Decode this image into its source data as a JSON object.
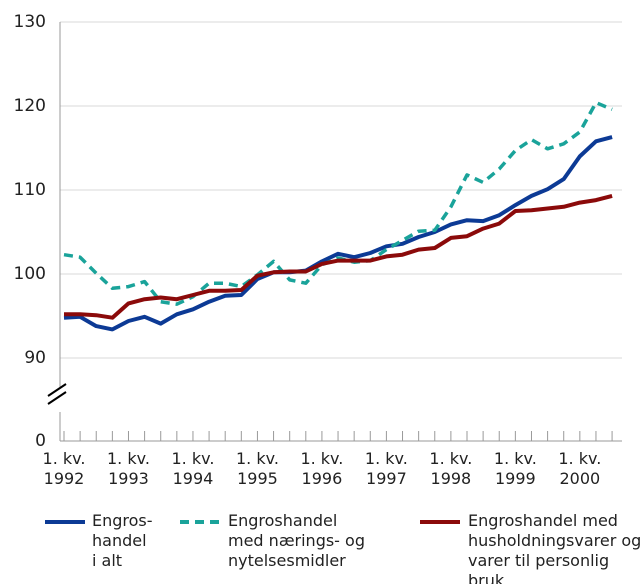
{
  "chart_data": {
    "type": "line",
    "categories": [
      "1. kv.\n1992",
      null,
      null,
      null,
      "1. kv.\n1993",
      null,
      null,
      null,
      "1. kv.\n1994",
      null,
      null,
      null,
      "1. kv.\n1995",
      null,
      null,
      null,
      "1. kv.\n1996",
      null,
      null,
      null,
      "1. kv.\n1997",
      null,
      null,
      null,
      "1. kv.\n1998",
      null,
      null,
      null,
      "1. kv.\n1999",
      null,
      null,
      null,
      "1. kv.\n2000",
      null,
      null
    ],
    "series": [
      {
        "name": "Engros-\nhandel\ni alt",
        "color": "#0c3a95",
        "dash": false,
        "values": [
          94.8,
          94.9,
          93.8,
          93.4,
          94.4,
          94.9,
          94.1,
          95.2,
          95.8,
          96.7,
          97.4,
          97.5,
          99.4,
          100.2,
          100.2,
          100.4,
          101.5,
          102.4,
          102.0,
          102.5,
          103.3,
          103.6,
          104.4,
          105.0,
          105.9,
          106.4,
          106.3,
          107.0,
          108.2,
          109.3,
          110.1,
          111.3,
          114.0,
          115.8,
          116.3
        ]
      },
      {
        "name": "Engroshandel\nmed nærings- og\nnytelsesmidler",
        "color": "#1aa39a",
        "dash": true,
        "values": [
          102.3,
          102.0,
          100.1,
          98.3,
          98.5,
          99.1,
          96.7,
          96.4,
          97.3,
          98.9,
          98.9,
          98.5,
          99.9,
          101.5,
          99.3,
          98.9,
          101.1,
          101.9,
          101.4,
          101.6,
          102.9,
          104.0,
          105.1,
          105.2,
          108.0,
          111.8,
          110.9,
          112.5,
          114.7,
          116.0,
          114.9,
          115.5,
          116.9,
          120.4,
          119.6
        ]
      },
      {
        "name": "Engroshandel med\nhusholdningsvarer og\nvarer til personlig bruk",
        "color": "#8b0a0a",
        "dash": false,
        "values": [
          95.2,
          95.2,
          95.1,
          94.8,
          96.5,
          97.0,
          97.2,
          97.0,
          97.5,
          98.0,
          98.0,
          98.1,
          99.8,
          100.2,
          100.3,
          100.3,
          101.2,
          101.6,
          101.6,
          101.6,
          102.1,
          102.3,
          102.9,
          103.1,
          104.3,
          104.5,
          105.4,
          106.0,
          107.5,
          107.6,
          107.8,
          108.0,
          108.5,
          108.8,
          109.3
        ]
      }
    ],
    "ylim": [
      0,
      130
    ],
    "yticks": [
      0,
      90,
      100,
      110,
      120,
      130
    ],
    "grid": true
  }
}
